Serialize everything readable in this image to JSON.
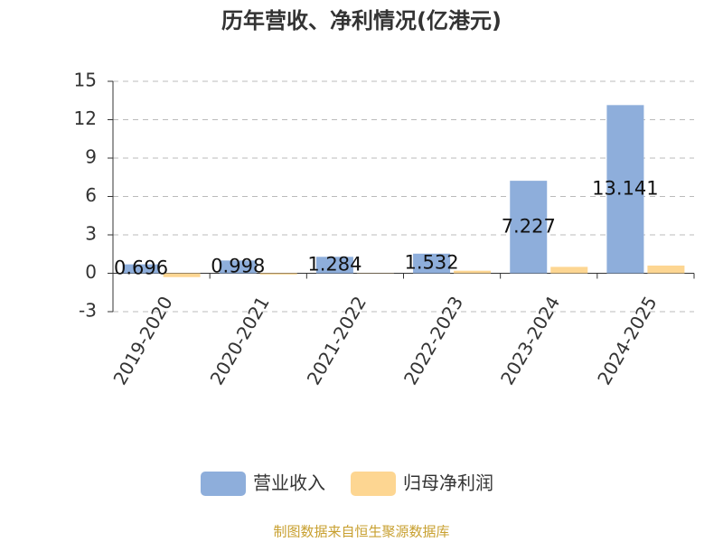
{
  "chart_data": {
    "type": "bar",
    "title": "历年营收、净利情况(亿港元)",
    "categories": [
      "2019-2020",
      "2020-2021",
      "2021-2022",
      "2022-2023",
      "2023-2024",
      "2024-2025"
    ],
    "series": [
      {
        "name": "营业收入",
        "color": "#8eaedb",
        "values": [
          0.696,
          0.998,
          1.284,
          1.532,
          7.227,
          13.141
        ],
        "show_labels": true
      },
      {
        "name": "归母净利润",
        "color": "#fdd692",
        "values": [
          -0.3,
          -0.1,
          0.02,
          0.2,
          0.5,
          0.6
        ],
        "show_labels": false
      }
    ],
    "ylim": [
      -3,
      15
    ],
    "yticks": [
      -3,
      0,
      3,
      6,
      9,
      12,
      15
    ],
    "grid": true,
    "legend": "bottom",
    "source": "制图数据来自恒生聚源数据库"
  }
}
